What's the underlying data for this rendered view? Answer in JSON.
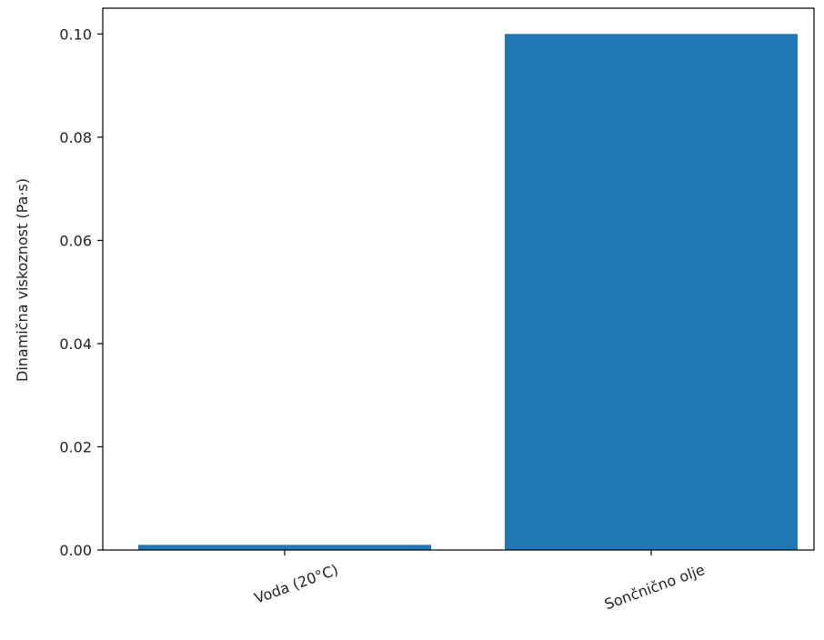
{
  "chart_data": {
    "type": "bar",
    "categories": [
      "Voda (20°C)",
      "Sončnično olje"
    ],
    "values": [
      0.001,
      0.1
    ],
    "ylabel": "Dinamična viskoznost (Pa·s)",
    "xlabel": "",
    "title": "",
    "ylim": [
      0,
      0.105
    ],
    "yticks": [
      "0.00",
      "0.02",
      "0.04",
      "0.06",
      "0.08",
      "0.10"
    ],
    "ytick_values": [
      0,
      0.02,
      0.04,
      0.06,
      0.08,
      0.1
    ],
    "bar_color": "#1f77b4",
    "grid": false,
    "legend": "none"
  }
}
